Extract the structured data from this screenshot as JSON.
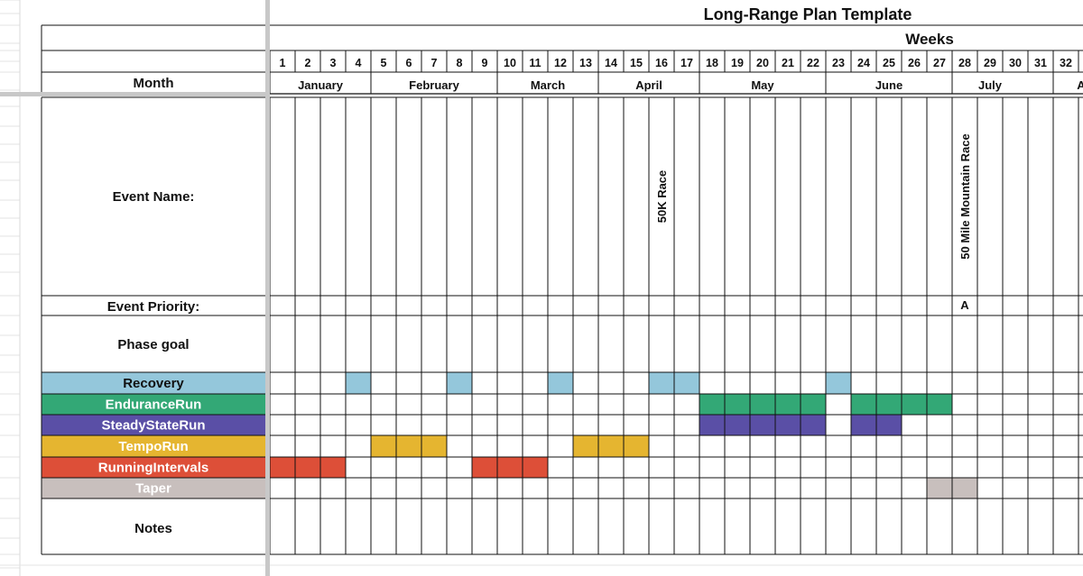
{
  "title": "Long-Range Plan Template",
  "weeks_label": "Weeks",
  "partial_month": "A",
  "week_numbers": [
    "1",
    "2",
    "3",
    "4",
    "5",
    "6",
    "7",
    "8",
    "9",
    "10",
    "11",
    "12",
    "13",
    "14",
    "15",
    "16",
    "17",
    "18",
    "19",
    "20",
    "21",
    "22",
    "23",
    "24",
    "25",
    "26",
    "27",
    "28",
    "29",
    "30",
    "31",
    "32"
  ],
  "months": [
    {
      "name": "January",
      "start": 1,
      "end": 4
    },
    {
      "name": "February",
      "start": 5,
      "end": 9
    },
    {
      "name": "March",
      "start": 10,
      "end": 13
    },
    {
      "name": "April",
      "start": 14,
      "end": 17
    },
    {
      "name": "May",
      "start": 18,
      "end": 22
    },
    {
      "name": "June",
      "start": 23,
      "end": 27
    },
    {
      "name": "July",
      "start": 27,
      "end": 31
    }
  ],
  "row_labels": {
    "month": "Month",
    "event_name": "Event Name:",
    "event_priority": "Event Priority:",
    "phase_goal": "Phase goal",
    "notes": "Notes"
  },
  "events": [
    {
      "week": 16,
      "name": "50K Race",
      "priority": ""
    },
    {
      "week": 28,
      "name": "50 Mile Mountain Race",
      "priority": "A"
    }
  ],
  "training_rows": [
    {
      "label": "Recovery",
      "color": "#94c7db",
      "text_color": "#111111",
      "weeks": [
        4,
        8,
        12,
        16,
        17,
        23
      ]
    },
    {
      "label": "EnduranceRun",
      "color": "#33a876",
      "text_color": "#ffffff",
      "weeks": [
        18,
        19,
        20,
        21,
        22,
        24,
        25,
        26,
        27
      ]
    },
    {
      "label": "SteadyStateRun",
      "color": "#5a4fa6",
      "text_color": "#ffffff",
      "weeks": [
        18,
        19,
        20,
        21,
        22,
        24,
        25
      ]
    },
    {
      "label": "TempoRun",
      "color": "#e5b530",
      "text_color": "#ffffff",
      "weeks": [
        5,
        6,
        7,
        13,
        14,
        15
      ]
    },
    {
      "label": "RunningIntervals",
      "color": "#dd4f38",
      "text_color": "#ffffff",
      "weeks": [
        1,
        2,
        3,
        9,
        10,
        11
      ]
    },
    {
      "label": "Taper",
      "color": "#c8bfbd",
      "text_color": "#ffffff",
      "weeks": [
        27,
        28
      ]
    }
  ]
}
